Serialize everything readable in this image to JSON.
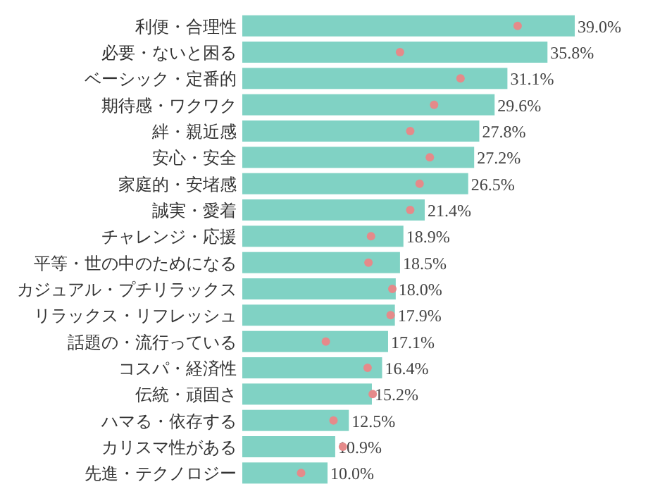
{
  "chart_data": {
    "type": "bar",
    "orientation": "horizontal",
    "categories": [
      "利便・合理性",
      "必要・ないと困る",
      "ベーシック・定番的",
      "期待感・ワクワク",
      "絆・親近感",
      "安心・安全",
      "家庭的・安堵感",
      "誠実・愛着",
      "チャレンジ・応援",
      "平等・世の中のためになる",
      "カジュアル・プチリラックス",
      "リラックス・リフレッシュ",
      "話題の・流行っている",
      "コスパ・経済性",
      "伝統・頑固さ",
      "ハマる・依存する",
      "カリスマ性がある",
      "先進・テクノロジー"
    ],
    "tick_labels": "y",
    "series": [
      {
        "color": "#80d2c4",
        "values": [
          39.0,
          35.8,
          31.1,
          29.6,
          27.8,
          27.2,
          26.5,
          21.4,
          18.9,
          18.5,
          18.0,
          17.9,
          17.1,
          16.4,
          15.2,
          12.5,
          10.9,
          10.0
        ],
        "value_labels": [
          "39.0%",
          "35.8%",
          "31.1%",
          "29.6%",
          "27.8%",
          "27.2%",
          "26.5%",
          "21.4%",
          "18.9%",
          "18.5%",
          "18.0%",
          "17.9%",
          "17.1%",
          "16.4%",
          "15.2%",
          "12.5%",
          "10.9%",
          "10.0%"
        ]
      },
      {
        "type": "scatter",
        "color": "#e58a8a",
        "marker": "circle",
        "values": [
          32.3,
          18.5,
          25.6,
          22.5,
          19.7,
          22.0,
          20.8,
          19.7,
          15.1,
          14.8,
          17.6,
          17.4,
          9.8,
          14.7,
          15.3,
          10.7,
          11.8,
          6.9
        ]
      }
    ]
  }
}
